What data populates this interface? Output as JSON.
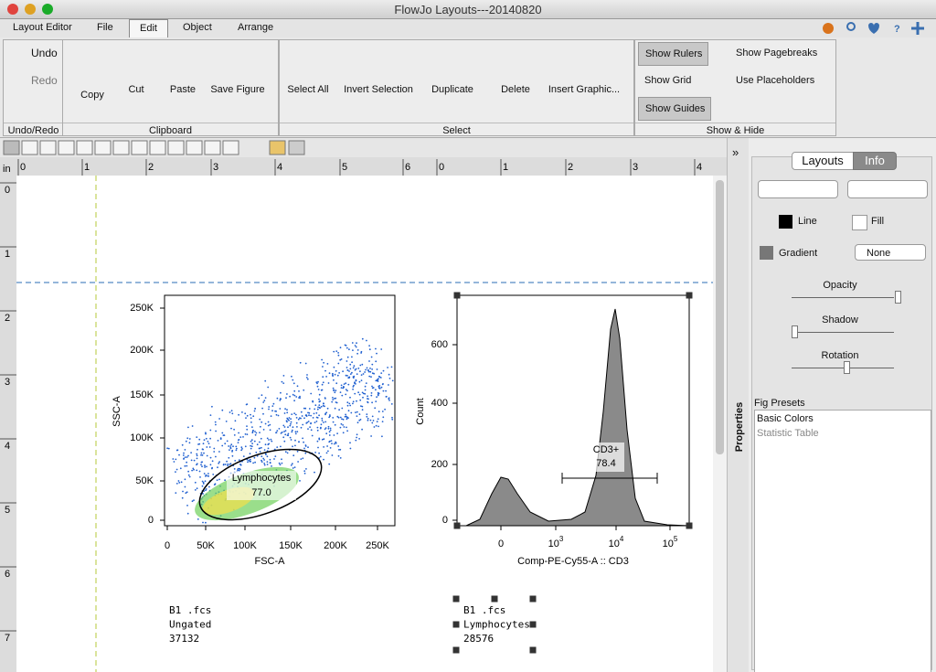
{
  "window": {
    "title": "FlowJo Layouts---20140820"
  },
  "tabs": [
    "Layout Editor",
    "File",
    "Edit",
    "Object",
    "Arrange"
  ],
  "ribbon": {
    "undo_redo": {
      "label": "Undo/Redo",
      "buttons": [
        "Undo",
        "Redo"
      ]
    },
    "clipboard": {
      "label": "Clipboard",
      "buttons": [
        "Copy",
        "Cut",
        "Paste",
        "Save Figure"
      ]
    },
    "select": {
      "label": "Select",
      "buttons": [
        "Select All",
        "Invert Selection",
        "Duplicate",
        "Delete",
        "Insert Graphic..."
      ]
    },
    "show_hide": {
      "label": "Show & Hide",
      "buttons": [
        "Show Rulers",
        "Show Grid",
        "Show Guides",
        "Show Pagebreaks",
        "Use Placeholders"
      ]
    }
  },
  "rulers": {
    "unit": "in",
    "top": [
      "0",
      "1",
      "2",
      "3",
      "4",
      "5",
      "6",
      "0",
      "1",
      "2",
      "3",
      "4"
    ],
    "left": [
      "0",
      "1",
      "2",
      "3",
      "4",
      "5",
      "6",
      "7"
    ]
  },
  "dot_plot": {
    "y_label": "SSC-A",
    "x_label": "FSC-A",
    "y_ticks": [
      "250K",
      "200K",
      "150K",
      "100K",
      "50K",
      "0"
    ],
    "x_ticks": [
      "0",
      "50K",
      "100K",
      "150K",
      "200K",
      "250K"
    ],
    "gate": {
      "name": "Lymphocytes",
      "value": "77.0"
    },
    "caption": [
      "B1 .fcs",
      "Ungated",
      "37132"
    ]
  },
  "histogram": {
    "y_label": "Count",
    "x_label": "Comp-PE-Cy55-A :: CD3",
    "y_ticks": [
      "600",
      "400",
      "200",
      "0"
    ],
    "x_ticks": [
      {
        "base": "0"
      },
      {
        "base": "10",
        "exp": "3"
      },
      {
        "base": "10",
        "exp": "4"
      },
      {
        "base": "10",
        "exp": "5"
      }
    ],
    "gate": {
      "name": "CD3+",
      "value": "78.4"
    },
    "caption": [
      "B1 .fcs",
      "Lymphocytes",
      "28576"
    ]
  },
  "side_panel": {
    "collapse": "»",
    "tab_label": "Properties",
    "toggle": [
      "Layouts",
      "Info"
    ],
    "line": "Line",
    "fill": "Fill",
    "gradient": "Gradient",
    "gradient_value": "None",
    "opacity": "Opacity",
    "shadow": "Shadow",
    "rotation": "Rotation",
    "presets_title": "Fig Presets",
    "presets": [
      "Basic Colors",
      "Statistic Table"
    ]
  }
}
